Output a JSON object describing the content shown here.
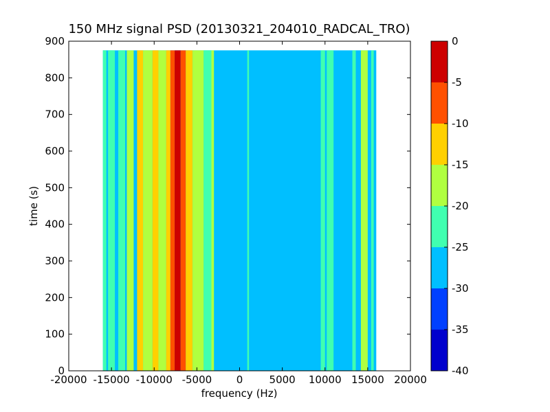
{
  "chart_data": {
    "type": "heatmap",
    "title": "150 MHz signal PSD (20130321_204010_RADCAL_TRO)",
    "xlabel": "frequency (Hz)",
    "ylabel": "time (s)",
    "xlim": [
      -20000,
      20000
    ],
    "ylim": [
      0,
      900
    ],
    "x_ticks": [
      -20000,
      -15000,
      -10000,
      -5000,
      0,
      5000,
      10000,
      15000,
      20000
    ],
    "y_ticks": [
      0,
      100,
      200,
      300,
      400,
      500,
      600,
      700,
      800,
      900
    ],
    "data_extent": {
      "x": [
        -16000,
        16000
      ],
      "y": [
        0,
        875
      ]
    },
    "background_level": -27.5,
    "bands": [
      {
        "x_start": -16000,
        "x_end": -15600,
        "level": -22.5
      },
      {
        "x_start": -15400,
        "x_end": -14600,
        "level": -22.5
      },
      {
        "x_start": -14200,
        "x_end": -13400,
        "level": -22.5
      },
      {
        "x_start": -13200,
        "x_end": -12400,
        "level": -17.5
      },
      {
        "x_start": -12000,
        "x_end": -11300,
        "level": -12.5
      },
      {
        "x_start": -11300,
        "x_end": -10200,
        "level": -17.5
      },
      {
        "x_start": -10200,
        "x_end": -9500,
        "level": -12.5
      },
      {
        "x_start": -9500,
        "x_end": -8600,
        "level": -17.5
      },
      {
        "x_start": -8600,
        "x_end": -8100,
        "level": -12.5
      },
      {
        "x_start": -8100,
        "x_end": -7600,
        "level": -7.5
      },
      {
        "x_start": -7600,
        "x_end": -6900,
        "level": -2.5
      },
      {
        "x_start": -6900,
        "x_end": -6300,
        "level": -7.5
      },
      {
        "x_start": -6300,
        "x_end": -5500,
        "level": -12.5
      },
      {
        "x_start": -5500,
        "x_end": -4200,
        "level": -17.5
      },
      {
        "x_start": -4200,
        "x_end": -3300,
        "level": -22.5
      },
      {
        "x_start": -3300,
        "x_end": -3000,
        "level": -17.5
      },
      {
        "x_start": 900,
        "x_end": 1100,
        "level": -22.5
      },
      {
        "x_start": 9500,
        "x_end": 10000,
        "level": -22.5
      },
      {
        "x_start": 10200,
        "x_end": 11000,
        "level": -22.5
      },
      {
        "x_start": 13200,
        "x_end": 13600,
        "level": -22.5
      },
      {
        "x_start": 14200,
        "x_end": 15000,
        "level": -17.5
      },
      {
        "x_start": 15400,
        "x_end": 15700,
        "level": -22.5
      }
    ],
    "colorbar": {
      "levels": [
        -40,
        -35,
        -30,
        -25,
        -20,
        -15,
        -10,
        -5,
        0
      ],
      "colors": [
        "#0000cd",
        "#0040ff",
        "#00bfff",
        "#40ffb0",
        "#b0ff40",
        "#ffd000",
        "#ff5000",
        "#cd0000"
      ]
    }
  }
}
